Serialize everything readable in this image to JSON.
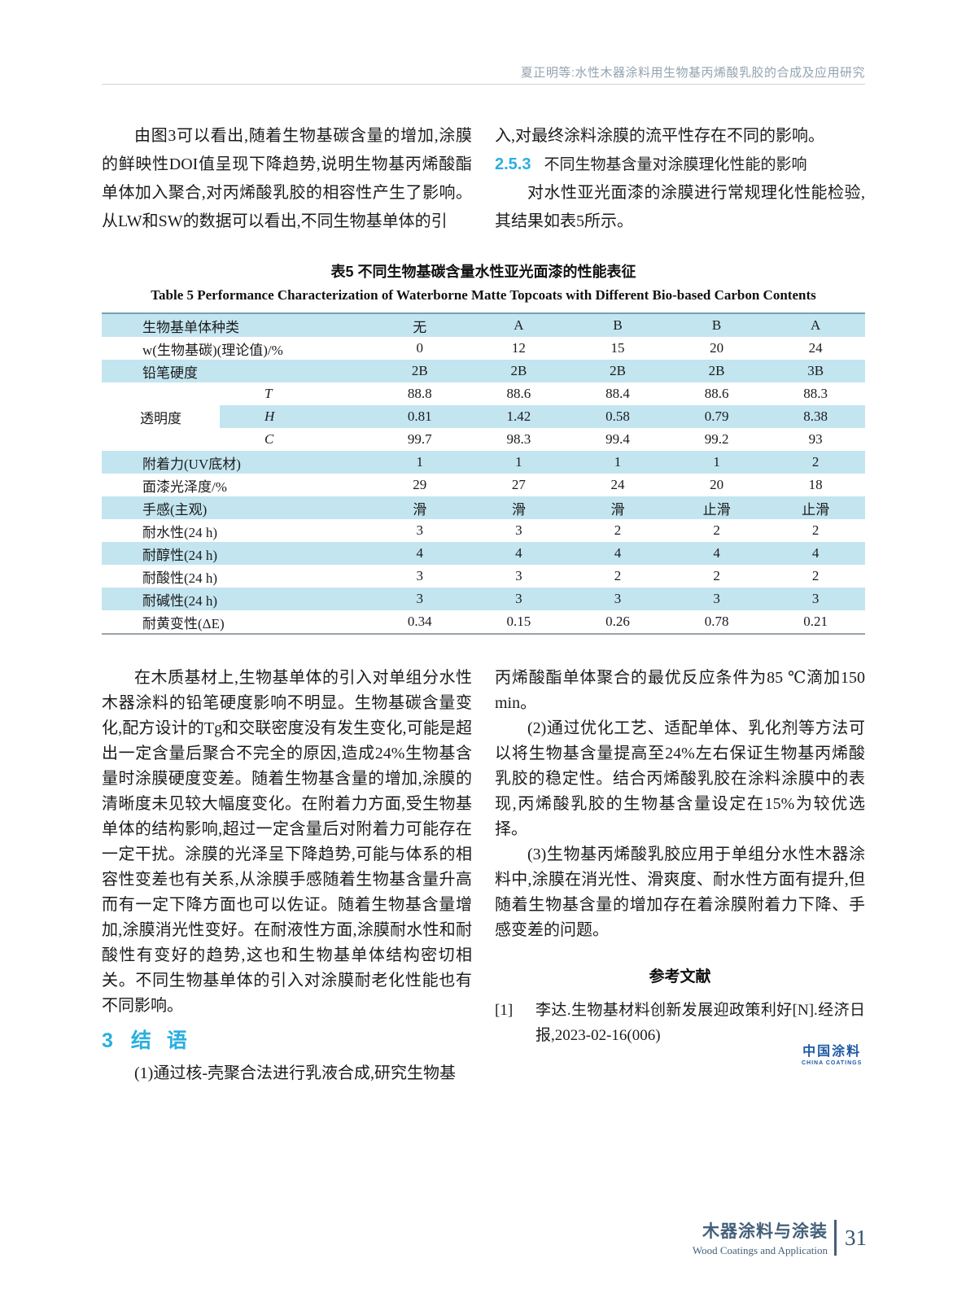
{
  "header": {
    "running_title": "夏正明等:水性木器涂料用生物基丙烯酸乳胶的合成及应用研究"
  },
  "top": {
    "left_para": "由图3可以看出,随着生物基碳含量的增加,涂膜的鲜映性DOI值呈现下降趋势,说明生物基丙烯酸酯单体加入聚合,对丙烯酸乳胶的相容性产生了影响。从LW和SW的数据可以看出,不同生物基单体的引",
    "right_para1": "入,对最终涂料涂膜的流平性存在不同的影响。",
    "sec_number": "2.5.3",
    "sec_title": "不同生物基含量对涂膜理化性能的影响",
    "right_para2": "对水性亚光面漆的涂膜进行常规理化性能检验,其结果如表5所示。"
  },
  "table": {
    "title_zh": "表5 不同生物基碳含量水性亚光面漆的性能表征",
    "title_en": "Table 5 Performance Characterization of Waterborne Matte Topcoats with Different Bio-based Carbon Contents",
    "rows": [
      {
        "type": "row",
        "label": "生物基单体种类",
        "values": [
          "无",
          "A",
          "B",
          "B",
          "A"
        ],
        "shaded": true
      },
      {
        "type": "row",
        "label": "w(生物基碳)(理论值)/%",
        "values": [
          "0",
          "12",
          "15",
          "20",
          "24"
        ],
        "shaded": false
      },
      {
        "type": "row",
        "label": "铅笔硬度",
        "values": [
          "2B",
          "2B",
          "2B",
          "2B",
          "3B"
        ],
        "shaded": true
      },
      {
        "type": "group",
        "label": "透明度",
        "sub_rows": [
          {
            "label": "T",
            "values": [
              "88.8",
              "88.6",
              "88.4",
              "88.6",
              "88.3"
            ],
            "shaded": false
          },
          {
            "label": "H",
            "values": [
              "0.81",
              "1.42",
              "0.58",
              "0.79",
              "8.38"
            ],
            "shaded": true
          },
          {
            "label": "C",
            "values": [
              "99.7",
              "98.3",
              "99.4",
              "99.2",
              "93"
            ],
            "shaded": false
          }
        ]
      },
      {
        "type": "row",
        "label": "附着力(UV底材)",
        "values": [
          "1",
          "1",
          "1",
          "1",
          "2"
        ],
        "shaded": true
      },
      {
        "type": "row",
        "label": "面漆光泽度/%",
        "values": [
          "29",
          "27",
          "24",
          "20",
          "18"
        ],
        "shaded": false
      },
      {
        "type": "row",
        "label": "手感(主观)",
        "values": [
          "滑",
          "滑",
          "滑",
          "止滑",
          "止滑"
        ],
        "shaded": true
      },
      {
        "type": "row",
        "label": "耐水性(24 h)",
        "values": [
          "3",
          "3",
          "2",
          "2",
          "2"
        ],
        "shaded": false
      },
      {
        "type": "row",
        "label": "耐醇性(24 h)",
        "values": [
          "4",
          "4",
          "4",
          "4",
          "4"
        ],
        "shaded": true
      },
      {
        "type": "row",
        "label": "耐酸性(24 h)",
        "values": [
          "3",
          "3",
          "2",
          "2",
          "2"
        ],
        "shaded": false
      },
      {
        "type": "row",
        "label": "耐碱性(24 h)",
        "values": [
          "3",
          "3",
          "3",
          "3",
          "3"
        ],
        "shaded": true
      },
      {
        "type": "row",
        "label": "耐黄变性(ΔE)",
        "values": [
          "0.34",
          "0.15",
          "0.26",
          "0.78",
          "0.21"
        ],
        "shaded": false
      }
    ]
  },
  "bottom": {
    "left_para": "在木质基材上,生物基单体的引入对单组分水性木器涂料的铅笔硬度影响不明显。生物基碳含量变化,配方设计的Tg和交联密度没有发生变化,可能是超出一定含量后聚合不完全的原因,造成24%生物基含量时涂膜硬度变差。随着生物基含量的增加,涂膜的清晰度未见较大幅度变化。在附着力方面,受生物基单体的结构影响,超过一定含量后对附着力可能存在一定干扰。涂膜的光泽呈下降趋势,可能与体系的相容性变差也有关系,从涂膜手感随着生物基含量升高而有一定下降方面也可以佐证。随着生物基含量增加,涂膜消光性变好。在耐液性方面,涂膜耐水性和耐酸性有变好的趋势,这也和生物基单体结构密切相关。不同生物基单体的引入对涂膜耐老化性能也有不同影响。",
    "sec_number": "3",
    "sec_title": "结 语",
    "left_item1": "(1)通过核-壳聚合法进行乳液合成,研究生物基",
    "right_para1": "丙烯酸酯单体聚合的最优反应条件为85 ℃滴加150 min。",
    "right_item2": "(2)通过优化工艺、适配单体、乳化剂等方法可以将生物基含量提高至24%左右保证生物基丙烯酸乳胶的稳定性。结合丙烯酸乳胶在涂料涂膜中的表现,丙烯酸乳胶的生物基含量设定在15%为较优选择。",
    "right_item3": "(3)生物基丙烯酸乳胶应用于单组分水性木器涂料中,涂膜在消光性、滑爽度、耐水性方面有提升,但随着生物基含量的增加存在着涂膜附着力下降、手感变差的问题。",
    "references_heading": "参考文献",
    "ref1_marker": "[1]",
    "ref1_text": "李达.生物基材料创新发展迎政策利好[N].经济日报,2023-02-16(006)"
  },
  "logo": {
    "zh": "中国涂料",
    "en": "CHINA COATINGS"
  },
  "footer": {
    "journal_zh": "木器涂料与涂装",
    "journal_en": "Wood Coatings and Application",
    "page_number": "31"
  },
  "colors": {
    "accent_cyan": "#29afe2",
    "table_band": "#c3e5f0",
    "logo_blue": "#1e5aa5",
    "footer_blue": "#44607a"
  }
}
